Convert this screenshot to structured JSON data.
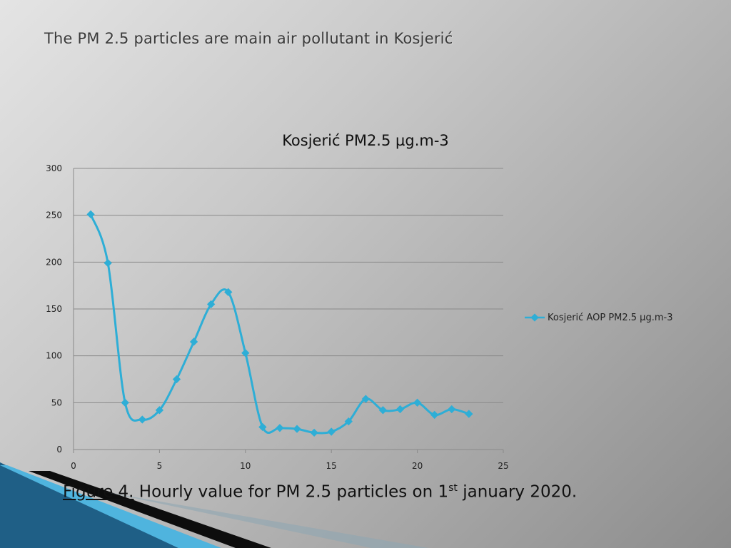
{
  "slide": {
    "title": "The PM 2.5 particles are main air pollutant in Kosjerić"
  },
  "caption": {
    "figure_label": "Figure 4.",
    "text_before_sup": " Hourly value for PM 2.5 particles on  1",
    "sup": "st",
    "text_after_sup": "  january 2020."
  },
  "colors": {
    "series": "#2eaed6",
    "grid": "#8a8a8a",
    "axis_text": "#222222"
  },
  "chart_data": {
    "type": "line",
    "title": "Kosjerić PM2.5 µg.m-3",
    "xlabel": "",
    "ylabel": "",
    "xlim": [
      0,
      25
    ],
    "ylim": [
      0,
      300
    ],
    "x_ticks": [
      0,
      5,
      10,
      15,
      20,
      25
    ],
    "y_ticks": [
      0,
      50,
      100,
      150,
      200,
      250,
      300
    ],
    "grid": true,
    "legend_position": "right",
    "series": [
      {
        "name": "Kosjerić AOP PM2.5 µg.m-3",
        "x": [
          1,
          2,
          3,
          4,
          5,
          6,
          7,
          8,
          9,
          10,
          11,
          12,
          13,
          14,
          15,
          16,
          17,
          18,
          19,
          20,
          21,
          22,
          23
        ],
        "y": [
          251,
          199,
          50,
          32,
          42,
          75,
          115,
          155,
          168,
          103,
          24,
          23,
          22,
          18,
          19,
          30,
          54,
          42,
          43,
          50,
          37,
          43,
          38
        ]
      }
    ]
  }
}
